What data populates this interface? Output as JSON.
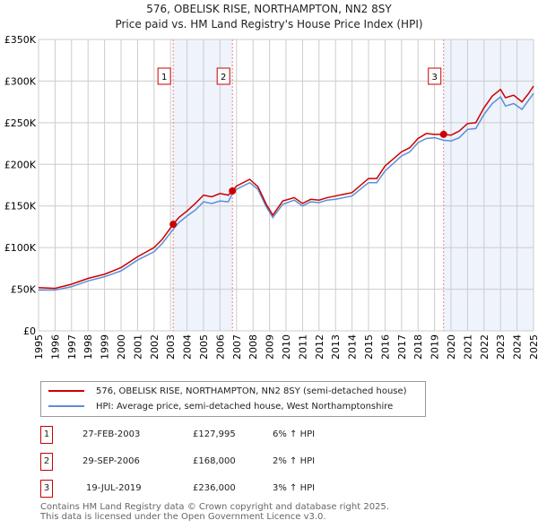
{
  "title": "576, OBELISK RISE, NORTHAMPTON, NN2 8SY",
  "subtitle": "Price paid vs. HM Land Registry's House Price Index (HPI)",
  "chart_data": {
    "type": "line",
    "ylim": [
      0,
      350000
    ],
    "xlim": [
      1995,
      2025
    ],
    "yticks": [
      {
        "v": 0,
        "label": "£0"
      },
      {
        "v": 50000,
        "label": "£50K"
      },
      {
        "v": 100000,
        "label": "£100K"
      },
      {
        "v": 150000,
        "label": "£150K"
      },
      {
        "v": 200000,
        "label": "£200K"
      },
      {
        "v": 250000,
        "label": "£250K"
      },
      {
        "v": 300000,
        "label": "£300K"
      },
      {
        "v": 350000,
        "label": "£350K"
      }
    ],
    "xticks": [
      "1995",
      "1996",
      "1997",
      "1998",
      "1999",
      "2000",
      "2001",
      "2002",
      "2003",
      "2004",
      "2005",
      "2006",
      "2007",
      "2008",
      "2009",
      "2010",
      "2011",
      "2012",
      "2013",
      "2014",
      "2015",
      "2016",
      "2017",
      "2018",
      "2019",
      "2020",
      "2021",
      "2022",
      "2023",
      "2024",
      "2025"
    ],
    "grid": true,
    "colors": {
      "property": "#cc0000",
      "hpi": "#5b8fd6",
      "shade": "#eef3fc"
    },
    "series": [
      {
        "name": "576, OBELISK RISE, NORTHAMPTON, NN2 8SY (semi-detached house)",
        "key": "property",
        "x": [
          1995,
          1996,
          1997,
          1998,
          1999,
          2000,
          2001,
          2002,
          2002.5,
          2003.16,
          2003.5,
          2004,
          2004.5,
          2005,
          2005.5,
          2006,
          2006.5,
          2006.75,
          2007,
          2007.8,
          2008.3,
          2008.8,
          2009.2,
          2009.8,
          2010.5,
          2011,
          2011.5,
          2012,
          2012.5,
          2013,
          2014,
          2015,
          2015.5,
          2016,
          2017,
          2017.5,
          2018,
          2018.5,
          2019,
          2019.55,
          2020,
          2020.5,
          2021,
          2021.5,
          2022,
          2022.5,
          2023,
          2023.3,
          2023.8,
          2024.3,
          2024.7,
          2025
        ],
        "y": [
          52000,
          51000,
          56000,
          63000,
          68000,
          76000,
          89000,
          100000,
          110000,
          127995,
          136000,
          144000,
          153000,
          163000,
          161000,
          165000,
          163000,
          168000,
          174000,
          182000,
          173000,
          152000,
          139000,
          156000,
          160000,
          153000,
          158000,
          157000,
          160000,
          162000,
          166000,
          183000,
          183000,
          198000,
          215000,
          220000,
          231000,
          237000,
          236000,
          236000,
          235000,
          240000,
          249000,
          250000,
          268000,
          282000,
          290000,
          280000,
          283000,
          275000,
          285000,
          294000
        ]
      },
      {
        "name": "HPI: Average price, semi-detached house, West Northamptonshire",
        "key": "hpi",
        "x": [
          1995,
          1996,
          1997,
          1998,
          1999,
          2000,
          2001,
          2002,
          2002.5,
          2003.16,
          2003.5,
          2004,
          2004.5,
          2005,
          2005.5,
          2006,
          2006.5,
          2006.75,
          2007,
          2007.8,
          2008.3,
          2008.8,
          2009.2,
          2009.8,
          2010.5,
          2011,
          2011.5,
          2012,
          2012.5,
          2013,
          2014,
          2015,
          2015.5,
          2016,
          2017,
          2017.5,
          2018,
          2018.5,
          2019,
          2019.55,
          2020,
          2020.5,
          2021,
          2021.5,
          2022,
          2022.5,
          2023,
          2023.3,
          2023.8,
          2024.3,
          2024.7,
          2025
        ],
        "y": [
          49000,
          49000,
          53000,
          60000,
          65000,
          72000,
          85000,
          95000,
          105000,
          122000,
          130000,
          138000,
          145000,
          155000,
          153000,
          156000,
          155000,
          165000,
          170000,
          178000,
          170000,
          149000,
          136000,
          152000,
          157000,
          150000,
          155000,
          154000,
          157000,
          158000,
          162000,
          178000,
          178000,
          192000,
          210000,
          215000,
          226000,
          231000,
          232000,
          229000,
          228000,
          232000,
          242000,
          243000,
          260000,
          273000,
          281000,
          270000,
          273000,
          266000,
          277000,
          285000
        ]
      }
    ],
    "sales": [
      {
        "n": "1",
        "x": 2003.16,
        "date": "27-FEB-2003",
        "price": "£127,995",
        "value": 127995,
        "hpi": "6% ↑ HPI"
      },
      {
        "n": "2",
        "x": 2006.75,
        "date": "29-SEP-2006",
        "price": "£168,000",
        "value": 168000,
        "hpi": "2% ↑ HPI"
      },
      {
        "n": "3",
        "x": 2019.55,
        "date": "19-JUL-2019",
        "price": "£236,000",
        "value": 236000,
        "hpi": "3% ↑ HPI"
      }
    ],
    "shaded": [
      [
        2003.16,
        2006.75
      ],
      [
        2019.55,
        2025
      ]
    ]
  },
  "footer": [
    "Contains HM Land Registry data © Crown copyright and database right 2025.",
    "This data is licensed under the Open Government Licence v3.0."
  ]
}
